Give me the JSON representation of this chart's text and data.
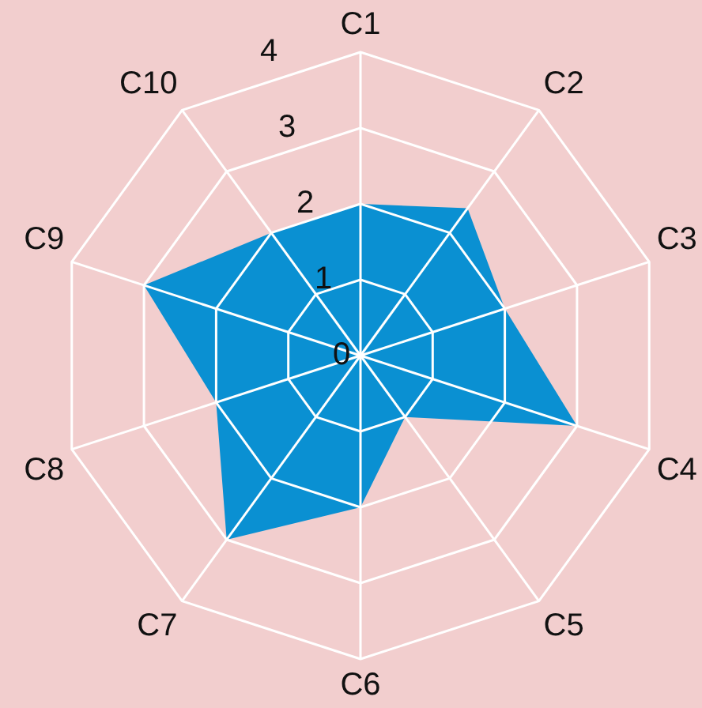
{
  "chart_data": {
    "type": "radar",
    "categories": [
      "C1",
      "C2",
      "C3",
      "C4",
      "C5",
      "C6",
      "C7",
      "C8",
      "C9",
      "C10"
    ],
    "series": [
      {
        "color": "#0a90d2",
        "values": [
          2,
          2.4,
          2,
          3,
          1,
          2,
          3,
          2,
          3,
          2
        ]
      }
    ],
    "ylim": [
      0,
      4
    ],
    "yticks": [
      0,
      1,
      2,
      3,
      4
    ],
    "grid": true,
    "legend": false,
    "marker": "none"
  }
}
